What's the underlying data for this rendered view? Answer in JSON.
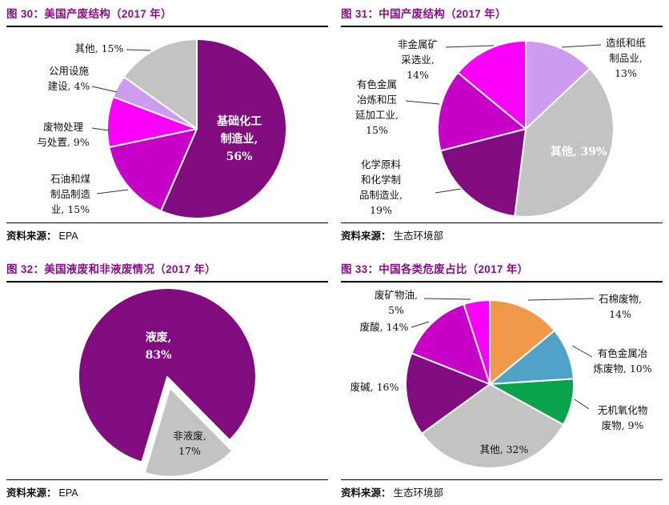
{
  "panels": [
    {
      "id": "fig30",
      "title": "图 30：美国产废结构（2017 年）",
      "source_label": "资料来源：",
      "source": "EPA",
      "chart_data": {
        "type": "pie",
        "title": "美国产废结构（2017 年）",
        "start_angle": 0,
        "center": [
          246,
          127
        ],
        "radius": 112,
        "categories": [
          "基础化工制造业",
          "石油和煤制品制造业",
          "废物处理与处置",
          "公用设施建设",
          "其他"
        ],
        "values": [
          56,
          15,
          9,
          4,
          15
        ],
        "slices": [
          {
            "name": "基础化工制造业",
            "value": 56,
            "color": "#800C80",
            "white_bold": true,
            "label_lines": [
              "基础化工",
              "制造业,",
              "56%"
            ],
            "label_pos": [
              299,
              122
            ]
          },
          {
            "name": "石油和煤制品制造业",
            "value": 15,
            "color": "#C600C6",
            "label_lines": [
              "石油和煤",
              "制品制造",
              "业, 15%"
            ],
            "label_pos": [
              88,
              194
            ],
            "leader": [
              [
                121,
                208
              ],
              [
                160,
                203
              ]
            ]
          },
          {
            "name": "废物处理与处置",
            "value": 9,
            "color": "#FA00FA",
            "label_lines": [
              "废物处理",
              "与处置, 9%"
            ],
            "label_pos": [
              79,
              129
            ],
            "leader": [
              [
                115,
                126
              ],
              [
                136,
                129
              ]
            ]
          },
          {
            "name": "公用设施建设",
            "value": 4,
            "color": "#CD9BF0",
            "label_lines": [
              "公用设施",
              "建设, 4%"
            ],
            "label_pos": [
              86,
              59
            ],
            "leader": [
              [
                115,
                74
              ],
              [
                146,
                81
              ]
            ]
          },
          {
            "name": "其他",
            "value": 15,
            "color": "#C3C3C3",
            "label_lines": [
              "其他, 15%"
            ],
            "label_pos": [
              124,
              31
            ],
            "leader": [
              [
                158,
                28
              ],
              [
                188,
                29
              ]
            ]
          }
        ]
      }
    },
    {
      "id": "fig31",
      "title": "图 31：中国产废结构（2017 年）",
      "source_label": "资料来源：",
      "source": "生态环境部",
      "chart_data": {
        "type": "pie",
        "title": "中国产废结构（2017 年）",
        "start_angle": 0,
        "center": [
          239,
          127
        ],
        "radius": 110,
        "categories": [
          "造纸和纸制品业",
          "其他",
          "化学原料和化学制品制造业",
          "有色金属冶炼和压延加工业",
          "非金属矿采选业"
        ],
        "values": [
          13,
          39,
          19,
          15,
          14
        ],
        "slices": [
          {
            "name": "造纸和纸制品业",
            "value": 13,
            "color": "#CD9BF0",
            "label_lines": [
              "造纸和纸",
              "制品业,",
              "13%"
            ],
            "label_pos": [
              364,
              24
            ],
            "leader": [
              [
                284,
                25
              ],
              [
                333,
                22
              ]
            ]
          },
          {
            "name": "其他",
            "value": 39,
            "color": "#C3C3C3",
            "white_bold": true,
            "label_lines": [
              "其他, 39%"
            ],
            "label_pos": [
              305,
              160
            ]
          },
          {
            "name": "化学原料和化学制品制造业",
            "value": 19,
            "color": "#800C80",
            "label_lines": [
              "化学原料",
              "和化学制",
              "品制造业,",
              "19%"
            ],
            "label_pos": [
              58,
              176
            ],
            "leader": [
              [
                126,
                207
              ],
              [
                158,
                202
              ]
            ]
          },
          {
            "name": "有色金属冶炼和压延加工业",
            "value": 15,
            "color": "#C600C6",
            "label_lines": [
              "有色金属",
              "冶炼和压",
              "延加工业,",
              "15%"
            ],
            "label_pos": [
              53,
              76
            ],
            "leader": [
              [
                89,
                92
              ],
              [
                131,
                96
              ]
            ]
          },
          {
            "name": "非金属矿采选业",
            "value": 14,
            "color": "#FA00FA",
            "label_lines": [
              "非金属矿",
              "采选业,",
              "14%"
            ],
            "label_pos": [
              104,
              26
            ],
            "leader": [
              [
                139,
                25
              ],
              [
                199,
                23
              ]
            ]
          }
        ]
      }
    },
    {
      "id": "fig32",
      "title": "图 32：美国液废和非液废情况（2017 年）",
      "source_label": "资料来源：",
      "source": "EPA",
      "chart_data": {
        "type": "pie",
        "title": "美国液废和非液废情况（2017 年）",
        "start_angle": 196.6,
        "center": [
          209,
          118
        ],
        "radius": 111,
        "categories": [
          "液废",
          "非液废"
        ],
        "values": [
          83,
          17
        ],
        "slices": [
          {
            "name": "液废",
            "value": 83,
            "color": "#800C80",
            "white_bold": true,
            "label_lines": [
              "液废,",
              "83%"
            ],
            "label_pos": [
              198,
              73
            ]
          },
          {
            "name": "非液废",
            "value": 17,
            "color": "#C3C3C3",
            "offset": 14,
            "label_lines": [
              "非液废,",
              "17%"
            ],
            "label_pos": [
              237,
              196
            ]
          }
        ]
      }
    },
    {
      "id": "fig33",
      "title": "图 33：中国各类危废占比（2017 年）",
      "source_label": "资料来源：",
      "source": "生态环境部",
      "chart_data": {
        "type": "pie",
        "title": "中国各类危废占比（2017 年）",
        "start_angle": 0,
        "center": [
          194,
          127
        ],
        "radius": 105,
        "categories": [
          "石棉废物",
          "有色金属冶炼废物",
          "无机氧化物废物",
          "其他",
          "废碱",
          "废酸",
          "废矿物油"
        ],
        "values": [
          14,
          10,
          9,
          32,
          16,
          14,
          5
        ],
        "slices": [
          {
            "name": "石棉废物",
            "value": 14,
            "color": "#F0994A",
            "label_lines": [
              "石棉废物,",
              "14%"
            ],
            "label_pos": [
              357,
              25
            ],
            "leader": [
              [
                242,
                22
              ],
              [
                324,
                20
              ]
            ]
          },
          {
            "name": "有色金属冶炼废物",
            "value": 10,
            "color": "#50A2C6",
            "label_lines": [
              "有色金属冶",
              "炼废物, 10%"
            ],
            "label_pos": [
              360,
              93
            ],
            "leader": [
              [
                297,
                79
              ],
              [
                322,
                93
              ]
            ]
          },
          {
            "name": "无机氧化物废物",
            "value": 9,
            "color": "#0AA24A",
            "label_lines": [
              "无机氧化物",
              "废物, 9%"
            ],
            "label_pos": [
              360,
              164
            ],
            "leader": [
              [
                300,
                146
              ],
              [
                318,
                158
              ]
            ]
          },
          {
            "name": "其他",
            "value": 32,
            "color": "#C3C3C3",
            "label_lines": [
              "其他, 32%"
            ],
            "label_pos": [
              212,
              213
            ]
          },
          {
            "name": "废碱",
            "value": 16,
            "color": "#800C80",
            "label_lines": [
              "废碱, 16%"
            ],
            "label_pos": [
              50,
              135
            ]
          },
          {
            "name": "废酸",
            "value": 14,
            "color": "#C600C6",
            "label_lines": [
              "废酸, 14%"
            ],
            "label_pos": [
              62,
              60
            ],
            "leader": [
              [
                96,
                56
              ],
              [
                118,
                49
              ]
            ]
          },
          {
            "name": "废矿物油",
            "value": 5,
            "color": "#FA00FA",
            "label_lines": [
              "废矿物油,",
              "5%"
            ],
            "label_pos": [
              77,
              20
            ],
            "leader": [
              [
                112,
                20
              ],
              [
                170,
                21
              ]
            ]
          }
        ]
      }
    }
  ]
}
